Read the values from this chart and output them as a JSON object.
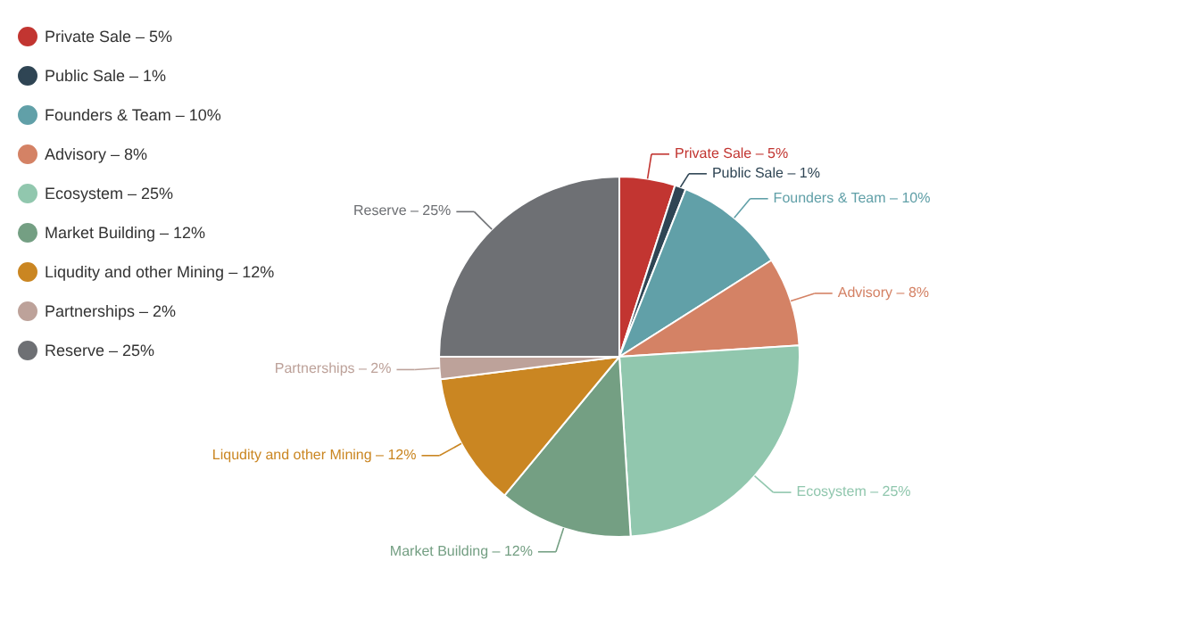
{
  "chart_data": {
    "type": "pie",
    "categories": [
      "Private Sale – 5%",
      "Public Sale – 1%",
      "Founders & Team – 10%",
      "Advisory – 8%",
      "Ecosystem – 25%",
      "Market Building – 12%",
      "Liqudity and other Mining – 12%",
      "Partnerships – 2%",
      "Reserve – 25%"
    ],
    "values": [
      5,
      1,
      10,
      8,
      25,
      12,
      12,
      2,
      25
    ],
    "colors": [
      "#c23531",
      "#2f4554",
      "#61a0a8",
      "#d48265",
      "#91c7ae",
      "#749f83",
      "#ca8622",
      "#bda29a",
      "#6e7074"
    ],
    "legend": "top left"
  }
}
